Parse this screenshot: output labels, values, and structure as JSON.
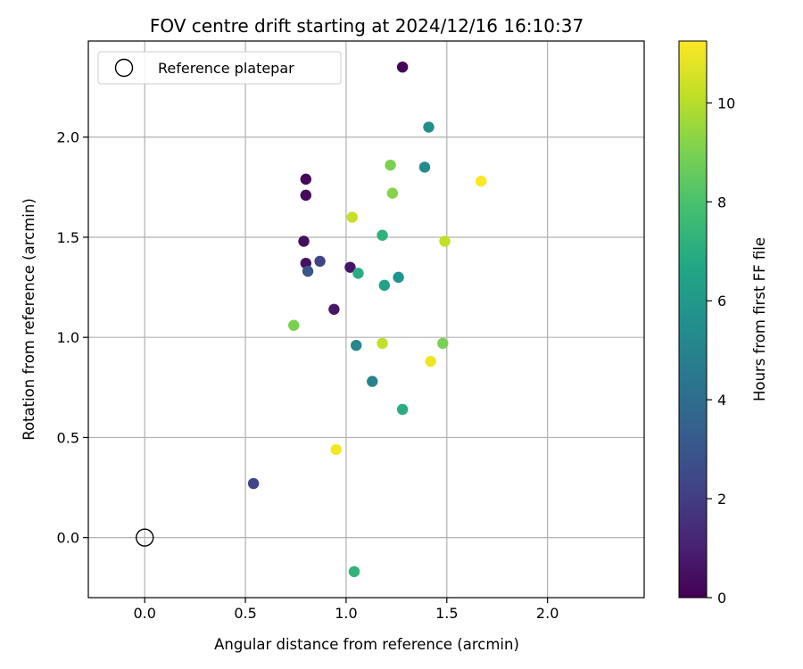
{
  "chart_data": {
    "type": "scatter",
    "title": "FOV centre drift starting at 2024/12/16 16:10:37",
    "xlabel": "Angular distance from reference (arcmin)",
    "ylabel": "Rotation from reference (arcmin)",
    "xlim": [
      -0.28,
      2.48
    ],
    "ylim": [
      -0.3,
      2.48
    ],
    "xticks": [
      0.0,
      0.5,
      1.0,
      1.5,
      2.0
    ],
    "xtick_labels": [
      "0.0",
      "0.5",
      "1.0",
      "1.5",
      "2.0"
    ],
    "yticks": [
      0.0,
      0.5,
      1.0,
      1.5,
      2.0
    ],
    "ytick_labels": [
      "0.0",
      "0.5",
      "1.0",
      "1.5",
      "2.0"
    ],
    "grid": true,
    "legend": {
      "placement": "top-left",
      "entries": [
        "Reference platepar"
      ]
    },
    "reference_point": {
      "x": 0.0,
      "y": 0.0,
      "label": "Reference platepar"
    },
    "colorbar": {
      "label": "Hours from first FF file",
      "range": [
        0,
        11.25
      ],
      "ticks": [
        0,
        2,
        4,
        6,
        8,
        10
      ],
      "tick_labels": [
        "0",
        "2",
        "4",
        "6",
        "8",
        "10"
      ],
      "colormap": "viridis"
    },
    "points": [
      {
        "x": 1.28,
        "y": 2.35,
        "hours": 0.1
      },
      {
        "x": 0.8,
        "y": 1.79,
        "hours": 0.2
      },
      {
        "x": 0.8,
        "y": 1.71,
        "hours": 0.3
      },
      {
        "x": 0.79,
        "y": 1.48,
        "hours": 0.4
      },
      {
        "x": 0.8,
        "y": 1.37,
        "hours": 0.5
      },
      {
        "x": 1.02,
        "y": 1.35,
        "hours": 0.6
      },
      {
        "x": 0.94,
        "y": 1.14,
        "hours": 0.7
      },
      {
        "x": 0.87,
        "y": 1.38,
        "hours": 2.2
      },
      {
        "x": 0.81,
        "y": 1.33,
        "hours": 3.0
      },
      {
        "x": 0.54,
        "y": 0.27,
        "hours": 2.3
      },
      {
        "x": 1.13,
        "y": 0.78,
        "hours": 5.0
      },
      {
        "x": 1.05,
        "y": 0.96,
        "hours": 5.2
      },
      {
        "x": 1.41,
        "y": 2.05,
        "hours": 5.5
      },
      {
        "x": 1.39,
        "y": 1.85,
        "hours": 5.3
      },
      {
        "x": 1.26,
        "y": 1.3,
        "hours": 5.8
      },
      {
        "x": 1.19,
        "y": 1.26,
        "hours": 6.5
      },
      {
        "x": 1.06,
        "y": 1.32,
        "hours": 7.0
      },
      {
        "x": 1.18,
        "y": 1.51,
        "hours": 7.2
      },
      {
        "x": 1.28,
        "y": 0.64,
        "hours": 7.0
      },
      {
        "x": 1.04,
        "y": -0.17,
        "hours": 7.3
      },
      {
        "x": 0.74,
        "y": 1.06,
        "hours": 9.0
      },
      {
        "x": 1.22,
        "y": 1.86,
        "hours": 9.0
      },
      {
        "x": 1.23,
        "y": 1.72,
        "hours": 9.2
      },
      {
        "x": 1.48,
        "y": 0.97,
        "hours": 9.0
      },
      {
        "x": 1.03,
        "y": 1.6,
        "hours": 10.3
      },
      {
        "x": 1.49,
        "y": 1.48,
        "hours": 10.2
      },
      {
        "x": 1.18,
        "y": 0.97,
        "hours": 10.2
      },
      {
        "x": 1.67,
        "y": 1.78,
        "hours": 11.2
      },
      {
        "x": 1.42,
        "y": 0.88,
        "hours": 11.0
      },
      {
        "x": 0.95,
        "y": 0.44,
        "hours": 11.1
      }
    ]
  }
}
